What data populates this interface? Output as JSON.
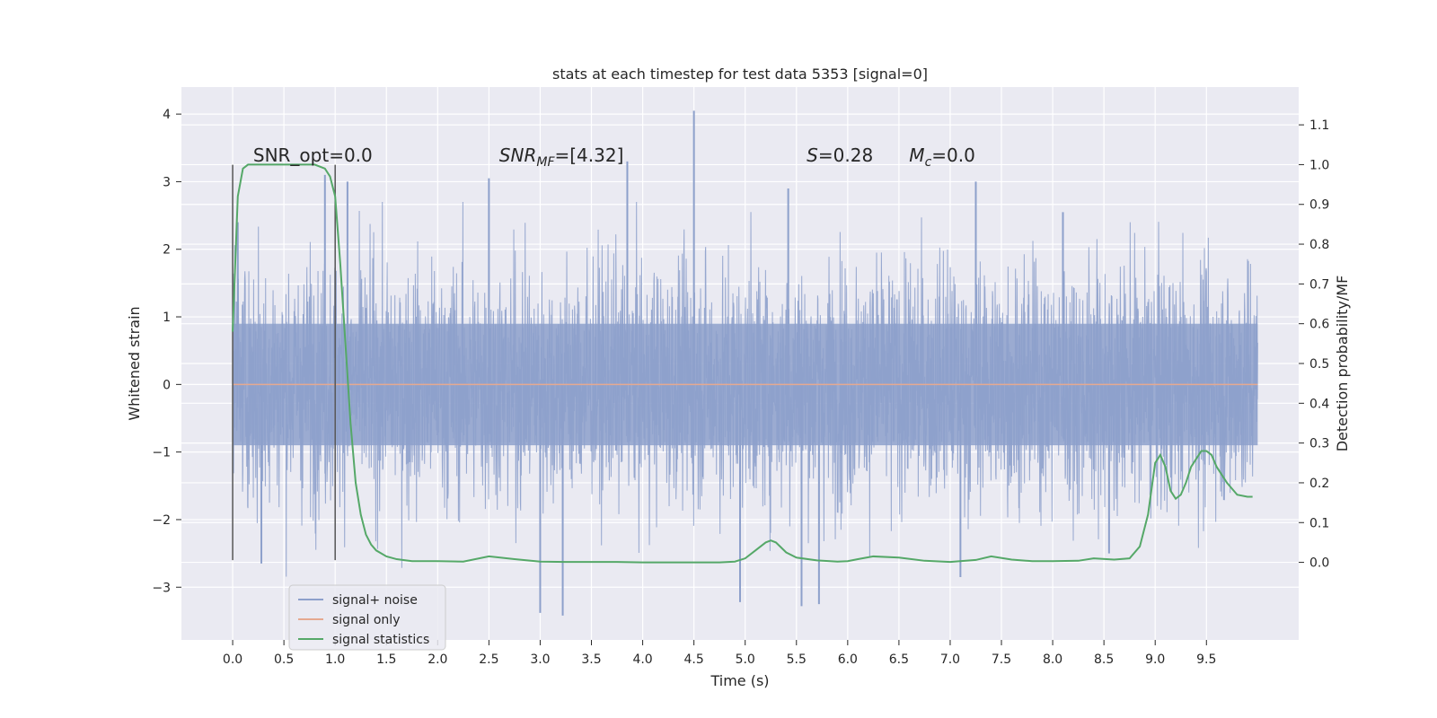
{
  "chart_data": {
    "type": "line",
    "title": "stats at each timestep for test data 5353 [signal=0]",
    "xlabel": "Time (s)",
    "ylabel": "Whitened strain",
    "y2label": "Detection probability/MF",
    "xlim": [
      -0.5,
      10.4
    ],
    "ylim": [
      -3.78,
      4.4
    ],
    "y2lim": [
      -0.195,
      1.195
    ],
    "xticks": [
      0.0,
      0.5,
      1.0,
      1.5,
      2.0,
      2.5,
      3.0,
      3.5,
      4.0,
      4.5,
      5.0,
      5.5,
      6.0,
      6.5,
      7.0,
      7.5,
      8.0,
      8.5,
      9.0,
      9.5
    ],
    "xtick_labels": [
      "0.0",
      "0.5",
      "1.0",
      "1.5",
      "2.0",
      "2.5",
      "3.0",
      "3.5",
      "4.0",
      "4.5",
      "5.0",
      "5.5",
      "6.0",
      "6.5",
      "7.0",
      "7.5",
      "8.0",
      "8.5",
      "9.0",
      "9.5"
    ],
    "yticks": [
      -3,
      -2,
      -1,
      0,
      1,
      2,
      3,
      4
    ],
    "ytick_labels": [
      "−3",
      "−2",
      "−1",
      "0",
      "1",
      "2",
      "3",
      "4"
    ],
    "y2ticks": [
      0.0,
      0.1,
      0.2,
      0.3,
      0.4,
      0.5,
      0.6,
      0.7,
      0.8,
      0.9,
      1.0,
      1.1
    ],
    "y2tick_labels": [
      "0.0",
      "0.1",
      "0.2",
      "0.3",
      "0.4",
      "0.5",
      "0.6",
      "0.7",
      "0.8",
      "0.9",
      "1.0",
      "1.1"
    ],
    "grid": true,
    "legend_position": "lower-left",
    "annotations": [
      {
        "text": "SNR_opt=0.0",
        "x": 0.2,
        "y": 3.3
      },
      {
        "text": "SNR",
        "sub": "MF",
        "suffix": "=[4.32]",
        "x": 2.6,
        "y": 3.3
      },
      {
        "text": "S",
        "suffix": "=0.28",
        "x": 5.6,
        "y": 3.3
      },
      {
        "text": "M",
        "sub": "c",
        "suffix": "=0.0",
        "x": 6.6,
        "y": 3.3
      }
    ],
    "vlines": [
      {
        "x": 0.0,
        "ymin": -2.6,
        "ymax": 3.25
      },
      {
        "x": 1.0,
        "ymin": -2.6,
        "ymax": 3.25
      }
    ],
    "series": [
      {
        "name": "signal+ noise",
        "color": "#8da0cb",
        "axis": "left",
        "t_range": [
          0.0,
          10.0
        ],
        "band": {
          "inner": 0.9,
          "outer_std": 0.9,
          "max_spike": 4.05
        },
        "spikes": [
          {
            "x": 0.05,
            "y": 2.4
          },
          {
            "x": 0.9,
            "y": 3.1
          },
          {
            "x": 1.12,
            "y": 3.0
          },
          {
            "x": 2.5,
            "y": 3.05
          },
          {
            "x": 3.85,
            "y": 3.3
          },
          {
            "x": 4.5,
            "y": 4.05
          },
          {
            "x": 5.42,
            "y": 2.9
          },
          {
            "x": 7.25,
            "y": 3.0
          },
          {
            "x": 8.1,
            "y": 2.55
          },
          {
            "x": 3.0,
            "y": -3.38
          },
          {
            "x": 3.22,
            "y": -3.42
          },
          {
            "x": 4.95,
            "y": -3.22
          },
          {
            "x": 5.55,
            "y": -3.28
          },
          {
            "x": 5.72,
            "y": -3.25
          },
          {
            "x": 0.28,
            "y": -2.65
          },
          {
            "x": 7.1,
            "y": -2.85
          },
          {
            "x": 8.55,
            "y": -2.5
          }
        ]
      },
      {
        "name": "signal only",
        "color": "#e5a990",
        "axis": "left",
        "x": [
          0.0,
          10.0
        ],
        "y": [
          0.0,
          0.0
        ]
      },
      {
        "name": "signal statistics",
        "color": "#55a868",
        "axis": "right",
        "x": [
          0.0,
          0.05,
          0.1,
          0.15,
          0.25,
          0.4,
          0.6,
          0.8,
          0.9,
          0.95,
          1.0,
          1.05,
          1.1,
          1.15,
          1.2,
          1.25,
          1.3,
          1.35,
          1.4,
          1.5,
          1.6,
          1.75,
          2.0,
          2.25,
          2.5,
          2.75,
          3.0,
          3.25,
          3.5,
          3.75,
          4.0,
          4.25,
          4.5,
          4.75,
          4.9,
          5.0,
          5.1,
          5.2,
          5.25,
          5.3,
          5.4,
          5.5,
          5.7,
          5.9,
          6.0,
          6.1,
          6.25,
          6.5,
          6.75,
          7.0,
          7.25,
          7.4,
          7.6,
          7.8,
          8.0,
          8.25,
          8.4,
          8.6,
          8.75,
          8.85,
          8.93,
          9.0,
          9.05,
          9.1,
          9.15,
          9.2,
          9.25,
          9.3,
          9.35,
          9.45,
          9.5,
          9.55,
          9.6,
          9.7,
          9.8,
          9.9,
          9.95
        ],
        "y": [
          0.58,
          0.92,
          0.99,
          1.0,
          1.0,
          1.0,
          1.0,
          1.0,
          0.99,
          0.97,
          0.92,
          0.75,
          0.55,
          0.35,
          0.2,
          0.12,
          0.07,
          0.045,
          0.03,
          0.015,
          0.008,
          0.003,
          0.003,
          0.002,
          0.015,
          0.008,
          0.002,
          0.001,
          0.001,
          0.001,
          0.0,
          0.0,
          0.0,
          0.0,
          0.002,
          0.01,
          0.03,
          0.05,
          0.055,
          0.05,
          0.025,
          0.012,
          0.005,
          0.002,
          0.003,
          0.008,
          0.015,
          0.012,
          0.004,
          0.001,
          0.006,
          0.015,
          0.007,
          0.003,
          0.003,
          0.004,
          0.01,
          0.007,
          0.01,
          0.04,
          0.12,
          0.25,
          0.27,
          0.24,
          0.18,
          0.16,
          0.17,
          0.2,
          0.24,
          0.28,
          0.28,
          0.27,
          0.24,
          0.2,
          0.17,
          0.165,
          0.165
        ]
      }
    ],
    "legend": [
      {
        "label": "signal+ noise",
        "color": "#8da0cb"
      },
      {
        "label": "signal only",
        "color": "#e5a990"
      },
      {
        "label": "signal statistics",
        "color": "#55a868"
      }
    ],
    "colors": {
      "background": "#eaeaf2",
      "grid": "#ffffff",
      "vline": "#555555"
    }
  }
}
